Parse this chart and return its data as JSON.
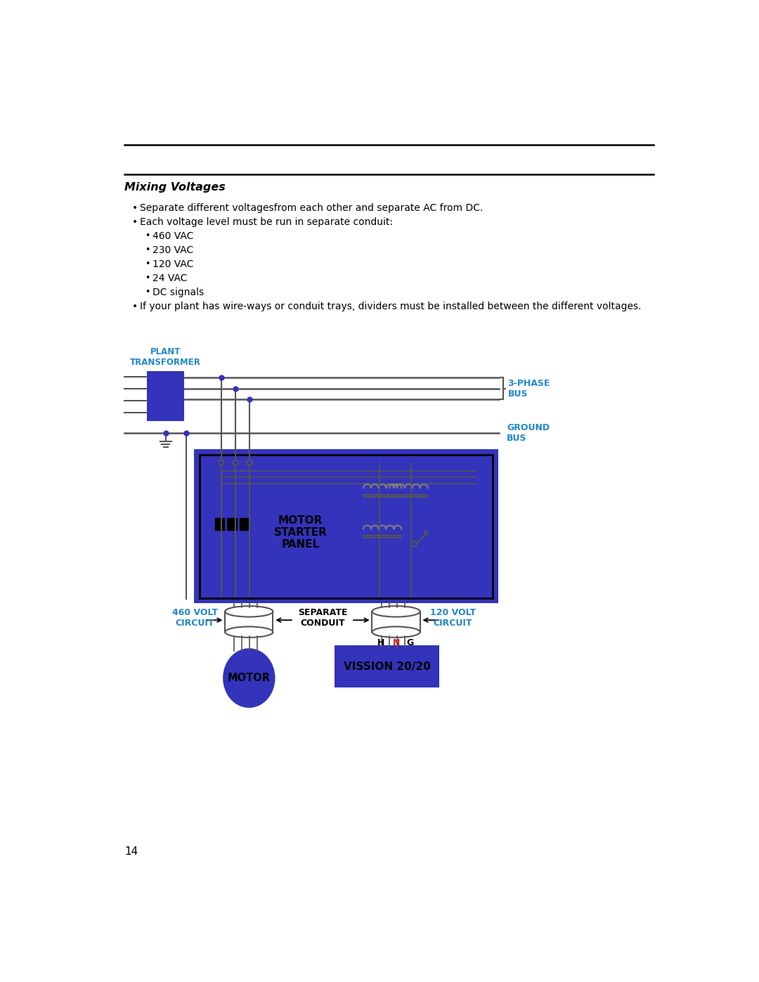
{
  "bg_color": "#ffffff",
  "blue_color": "#3333bb",
  "dark_color": "#000000",
  "gray_color": "#555555",
  "cyan_label": "#2288cc",
  "red_label": "#cc2222",
  "page_number": "14",
  "title": "Mixing Voltages",
  "bullet1": "Separate different voltagesfrom each other and separate AC from DC.",
  "bullet2": "Each voltage level must be run in separate conduit:",
  "sub_bullets": [
    "460 VAC",
    "230 VAC",
    "120 VAC",
    "24 VAC",
    "DC signals"
  ],
  "bullet3": "If your plant has wire-ways or conduit trays, dividers must be installed between the different voltages.",
  "label_plant_transformer": "PLANT\nTRANSFORMER",
  "label_3phase": "3-PHASE\nBUS",
  "label_ground": "GROUND\nBUS",
  "label_motor_starter": "MOTOR\nSTARTER\nPANEL",
  "label_460volt": "460 VOLT\nCIRCUIT",
  "label_separate": "SEPARATE\nCONDUIT",
  "label_120volt": "120 VOLT\nCIRCUIT",
  "label_motor": "MOTOR",
  "label_vission": "VISSION 20/20",
  "label_H": "H",
  "label_N": "N",
  "label_G": "G"
}
